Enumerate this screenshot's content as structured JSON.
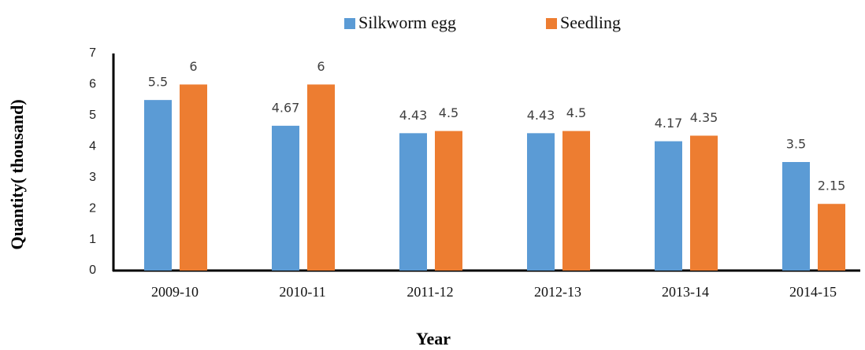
{
  "chart_data": {
    "type": "bar",
    "categories": [
      "2009-10",
      "2010-11",
      "2011-12",
      "2012-13",
      "2013-14",
      "2014-15"
    ],
    "series": [
      {
        "name": "Silkworm egg",
        "color": "#5b9bd5",
        "values": [
          5.5,
          4.67,
          4.43,
          4.43,
          4.17,
          3.5
        ]
      },
      {
        "name": "Seedling",
        "color": "#ed7d31",
        "values": [
          6,
          6,
          4.5,
          4.5,
          4.35,
          2.15
        ]
      }
    ],
    "ylim": [
      0,
      7
    ],
    "yticks": [
      0,
      1,
      2,
      3,
      4,
      5,
      6,
      7
    ],
    "x_label": "Year",
    "y_label": "Quantity( thousand)",
    "legend": "top"
  }
}
